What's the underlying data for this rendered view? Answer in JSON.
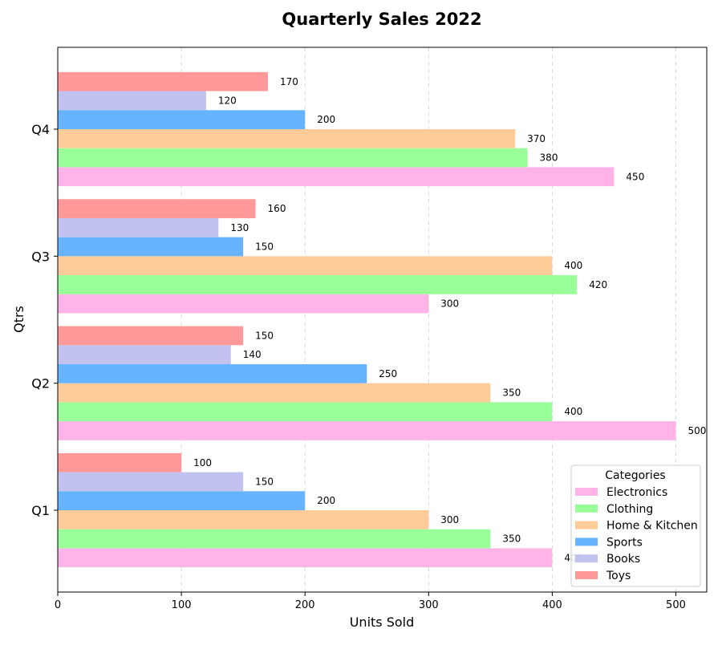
{
  "chart_data": {
    "type": "bar",
    "orientation": "horizontal",
    "title": "Quarterly Sales 2022",
    "xlabel": "Units Sold",
    "ylabel": "Qtrs",
    "categories": [
      "Q1",
      "Q2",
      "Q3",
      "Q4"
    ],
    "xlim": [
      0,
      525
    ],
    "xticks": [
      0,
      100,
      200,
      300,
      400,
      500
    ],
    "grid": "x-axis dashed",
    "legend": {
      "title": "Categories",
      "position": "lower-right"
    },
    "series": [
      {
        "name": "Electronics",
        "color": "#ffb3e6",
        "values": [
          400,
          500,
          300,
          450
        ]
      },
      {
        "name": "Clothing",
        "color": "#99ff99",
        "values": [
          350,
          400,
          420,
          380
        ]
      },
      {
        "name": "Home & Kitchen",
        "color": "#ffcc99",
        "values": [
          300,
          350,
          400,
          370
        ]
      },
      {
        "name": "Sports",
        "color": "#66b3ff",
        "values": [
          200,
          250,
          150,
          200
        ]
      },
      {
        "name": "Books",
        "color": "#c2c2f0",
        "values": [
          150,
          140,
          130,
          120
        ]
      },
      {
        "name": "Toys",
        "color": "#ff9999",
        "values": [
          100,
          150,
          160,
          170
        ]
      }
    ]
  }
}
